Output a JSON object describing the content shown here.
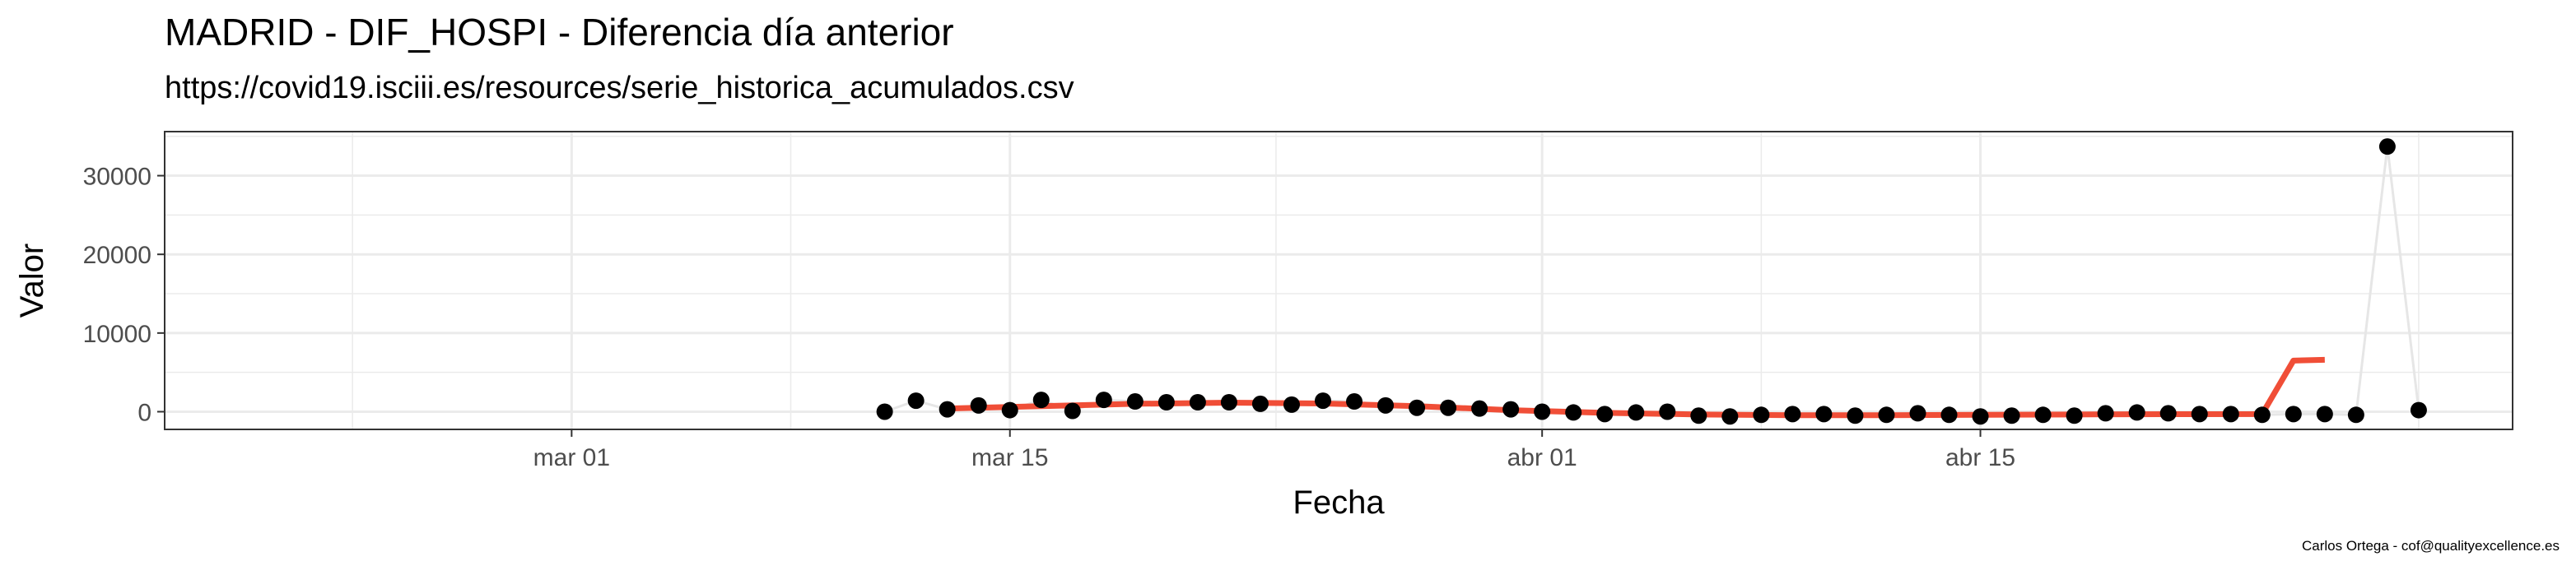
{
  "title": "MADRID - DIF_HOSPI - Diferencia día anterior",
  "subtitle": "https://covid19.isciii.es/resources/serie_historica_acumulados.csv",
  "caption": "Carlos Ortega - cof@qualityexcellence.es",
  "chart_data": {
    "type": "scatter",
    "xlabel": "Fecha",
    "ylabel": "Valor",
    "xlim": [
      "2020-02-17",
      "2020-05-02"
    ],
    "ylim": [
      -2250,
      35600
    ],
    "x_ticks": [
      {
        "date": "2020-03-01",
        "label": "mar 01"
      },
      {
        "date": "2020-03-15",
        "label": "mar 15"
      },
      {
        "date": "2020-04-01",
        "label": "abr 01"
      },
      {
        "date": "2020-04-15",
        "label": "abr 15"
      }
    ],
    "y_ticks": [
      0,
      10000,
      20000,
      30000
    ],
    "grid": true,
    "colors": {
      "points": "#000000",
      "smooth": "#f04e37",
      "connector": "#e6e6e6",
      "grid": "#ebebeb",
      "border": "#333333"
    },
    "points": [
      {
        "x": "2020-03-11",
        "y": 0
      },
      {
        "x": "2020-03-12",
        "y": 1400
      },
      {
        "x": "2020-03-13",
        "y": 300
      },
      {
        "x": "2020-03-14",
        "y": 800
      },
      {
        "x": "2020-03-15",
        "y": 200
      },
      {
        "x": "2020-03-16",
        "y": 1500
      },
      {
        "x": "2020-03-17",
        "y": 100
      },
      {
        "x": "2020-03-18",
        "y": 1500
      },
      {
        "x": "2020-03-19",
        "y": 1300
      },
      {
        "x": "2020-03-20",
        "y": 1200
      },
      {
        "x": "2020-03-21",
        "y": 1200
      },
      {
        "x": "2020-03-22",
        "y": 1200
      },
      {
        "x": "2020-03-23",
        "y": 1000
      },
      {
        "x": "2020-03-24",
        "y": 900
      },
      {
        "x": "2020-03-25",
        "y": 1400
      },
      {
        "x": "2020-03-26",
        "y": 1300
      },
      {
        "x": "2020-03-27",
        "y": 800
      },
      {
        "x": "2020-03-28",
        "y": 500
      },
      {
        "x": "2020-03-29",
        "y": 500
      },
      {
        "x": "2020-03-30",
        "y": 400
      },
      {
        "x": "2020-03-31",
        "y": 300
      },
      {
        "x": "2020-04-01",
        "y": 0
      },
      {
        "x": "2020-04-02",
        "y": -100
      },
      {
        "x": "2020-04-03",
        "y": -300
      },
      {
        "x": "2020-04-04",
        "y": -100
      },
      {
        "x": "2020-04-05",
        "y": 0
      },
      {
        "x": "2020-04-06",
        "y": -500
      },
      {
        "x": "2020-04-07",
        "y": -600
      },
      {
        "x": "2020-04-08",
        "y": -400
      },
      {
        "x": "2020-04-09",
        "y": -300
      },
      {
        "x": "2020-04-10",
        "y": -300
      },
      {
        "x": "2020-04-11",
        "y": -500
      },
      {
        "x": "2020-04-12",
        "y": -400
      },
      {
        "x": "2020-04-13",
        "y": -200
      },
      {
        "x": "2020-04-14",
        "y": -400
      },
      {
        "x": "2020-04-15",
        "y": -600
      },
      {
        "x": "2020-04-16",
        "y": -500
      },
      {
        "x": "2020-04-17",
        "y": -400
      },
      {
        "x": "2020-04-18",
        "y": -500
      },
      {
        "x": "2020-04-19",
        "y": -200
      },
      {
        "x": "2020-04-20",
        "y": -100
      },
      {
        "x": "2020-04-21",
        "y": -200
      },
      {
        "x": "2020-04-22",
        "y": -300
      },
      {
        "x": "2020-04-23",
        "y": -300
      },
      {
        "x": "2020-04-24",
        "y": -400
      },
      {
        "x": "2020-04-25",
        "y": -300
      },
      {
        "x": "2020-04-26",
        "y": -300
      },
      {
        "x": "2020-04-27",
        "y": -400
      },
      {
        "x": "2020-04-28",
        "y": 33700
      },
      {
        "x": "2020-04-29",
        "y": 200
      }
    ],
    "smooth_line": [
      {
        "x": "2020-03-13",
        "y": 400
      },
      {
        "x": "2020-03-16",
        "y": 700
      },
      {
        "x": "2020-03-19",
        "y": 1000
      },
      {
        "x": "2020-03-22",
        "y": 1150
      },
      {
        "x": "2020-03-25",
        "y": 1050
      },
      {
        "x": "2020-03-28",
        "y": 700
      },
      {
        "x": "2020-03-31",
        "y": 200
      },
      {
        "x": "2020-04-03",
        "y": -150
      },
      {
        "x": "2020-04-06",
        "y": -350
      },
      {
        "x": "2020-04-09",
        "y": -450
      },
      {
        "x": "2020-04-12",
        "y": -450
      },
      {
        "x": "2020-04-15",
        "y": -400
      },
      {
        "x": "2020-04-18",
        "y": -350
      },
      {
        "x": "2020-04-21",
        "y": -320
      },
      {
        "x": "2020-04-24",
        "y": -300
      },
      {
        "x": "2020-04-25",
        "y": 6500
      },
      {
        "x": "2020-04-26",
        "y": 6600
      }
    ]
  }
}
